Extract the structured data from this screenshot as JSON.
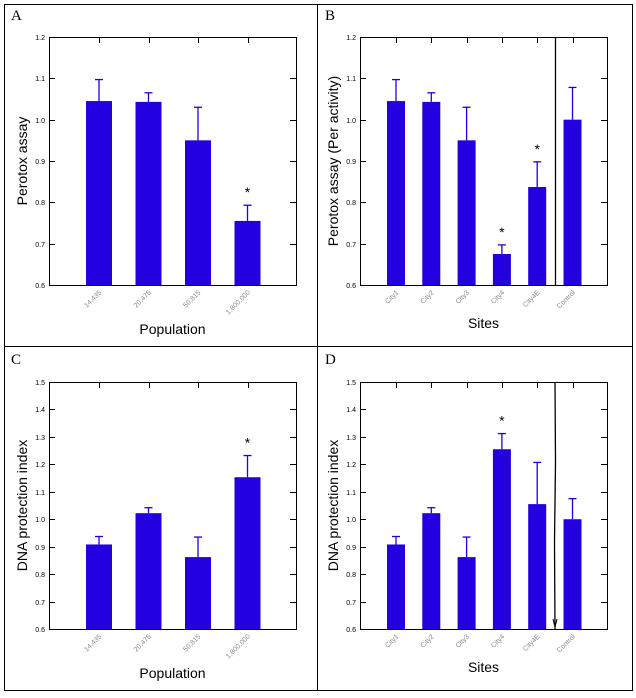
{
  "colors": {
    "bar": "#2200e0",
    "axis": "#000000",
    "tick_label_x": "#8a8a8a"
  },
  "chart_data": [
    {
      "id": "A",
      "panel_label": "A",
      "type": "bar",
      "xlabel": "Population",
      "ylabel": "Perotox assay",
      "ylim": [
        0.6,
        1.2
      ],
      "yticks": [
        "0.6",
        "0.7",
        "0.8",
        "0.9",
        "1.0",
        "1.1",
        "1.2"
      ],
      "categories": [
        "14,435",
        "20,475",
        "50,815",
        "1,800,000"
      ],
      "values": [
        1.045,
        1.043,
        0.95,
        0.755
      ],
      "error_upper": [
        1.097,
        1.065,
        1.03,
        0.793
      ],
      "significant": [
        false,
        false,
        false,
        true
      ],
      "significance_marker": "*",
      "separator_before_last": false
    },
    {
      "id": "B",
      "panel_label": "B",
      "type": "bar",
      "xlabel": "Sites",
      "ylabel": "Perotox assay (Per activity)",
      "ylim": [
        0.6,
        1.2
      ],
      "yticks": [
        "0.6",
        "0.7",
        "0.8",
        "0.9",
        "1.0",
        "1.1",
        "1.2"
      ],
      "categories": [
        "City1",
        "City2",
        "City3",
        "City4",
        "City4E",
        "Control"
      ],
      "values": [
        1.045,
        1.043,
        0.95,
        0.675,
        0.837,
        1.0
      ],
      "error_upper": [
        1.097,
        1.065,
        1.03,
        0.697,
        0.898,
        1.078
      ],
      "significant": [
        false,
        false,
        false,
        true,
        true,
        false
      ],
      "significance_marker": "*",
      "separator_before_last": true
    },
    {
      "id": "C",
      "panel_label": "C",
      "type": "bar",
      "xlabel": "Population",
      "ylabel": "DNA protection index",
      "ylim": [
        0.6,
        1.5
      ],
      "yticks": [
        "0.6",
        "0.7",
        "0.8",
        "0.9",
        "1.0",
        "1.1",
        "1.2",
        "1.3",
        "1.4",
        "1.5"
      ],
      "categories": [
        "14,435",
        "20,475",
        "50,815",
        "1,800,000"
      ],
      "values": [
        0.908,
        1.022,
        0.862,
        1.153
      ],
      "error_upper": [
        0.937,
        1.042,
        0.935,
        1.232
      ],
      "significant": [
        false,
        false,
        false,
        true
      ],
      "significance_marker": "*",
      "separator_before_last": false
    },
    {
      "id": "D",
      "panel_label": "D",
      "type": "bar",
      "xlabel": "Sites",
      "ylabel": "DNA protection index",
      "ylim": [
        0.6,
        1.5
      ],
      "yticks": [
        "0.6",
        "0.7",
        "0.8",
        "0.9",
        "1.0",
        "1.1",
        "1.2",
        "1.3",
        "1.4",
        "1.5"
      ],
      "categories": [
        "City1",
        "City2",
        "City3",
        "City4",
        "City4E",
        "Control"
      ],
      "values": [
        0.908,
        1.022,
        0.862,
        1.255,
        1.055,
        1.0
      ],
      "error_upper": [
        0.937,
        1.042,
        0.935,
        1.312,
        1.207,
        1.075
      ],
      "significant": [
        false,
        false,
        false,
        true,
        false,
        false
      ],
      "significance_marker": "*",
      "separator_before_last": true
    }
  ]
}
